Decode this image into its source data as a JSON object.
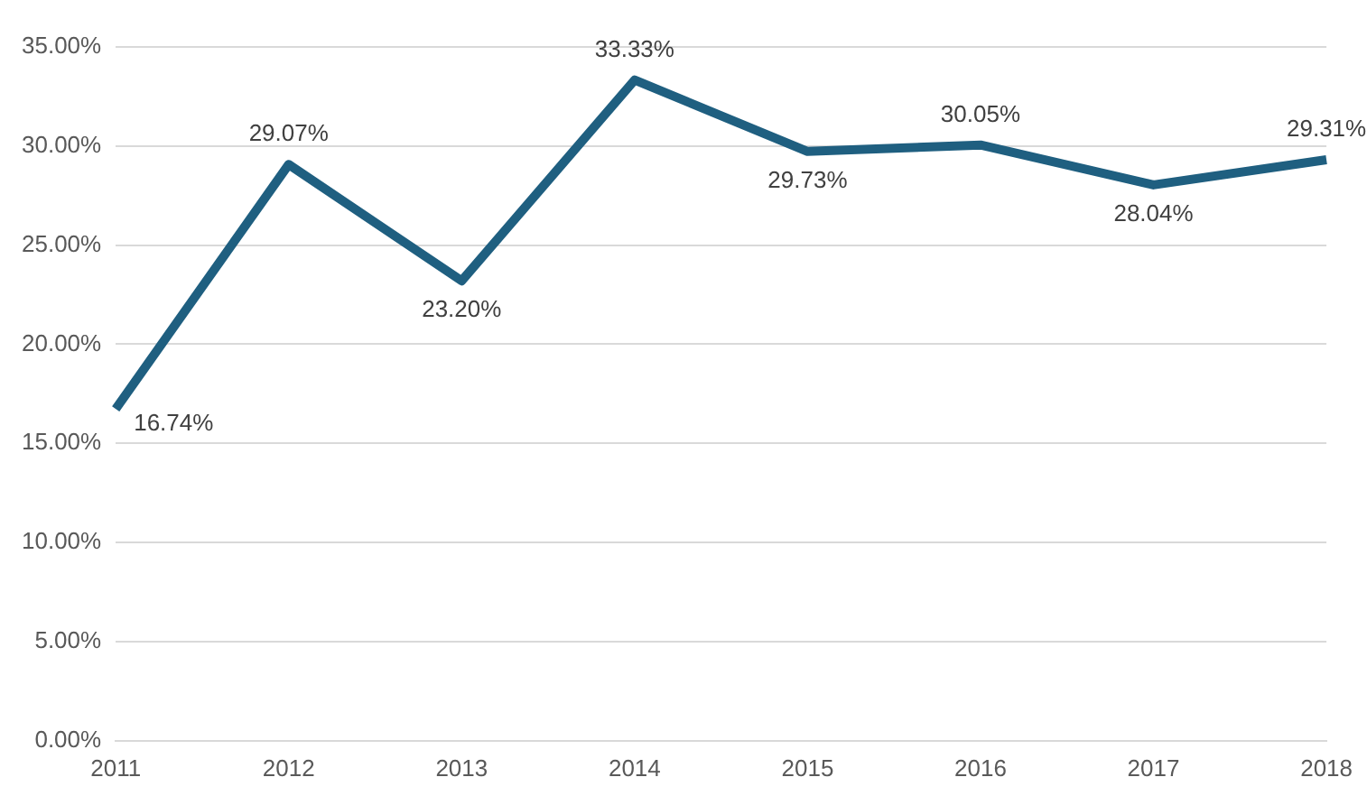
{
  "chart_data": {
    "type": "line",
    "categories": [
      "2011",
      "2012",
      "2013",
      "2014",
      "2015",
      "2016",
      "2017",
      "2018"
    ],
    "series": [
      {
        "color": "#1f5f80",
        "values": [
          16.74,
          29.07,
          23.2,
          33.33,
          29.73,
          30.05,
          28.04,
          29.31
        ],
        "value_labels": [
          "16.74%",
          "29.07%",
          "23.20%",
          "33.33%",
          "29.73%",
          "30.05%",
          "28.04%",
          "29.31%"
        ]
      }
    ],
    "ylim": [
      0,
      35
    ],
    "yticks": [
      {
        "value": 0,
        "label": "0.00%"
      },
      {
        "value": 5,
        "label": "5.00%"
      },
      {
        "value": 10,
        "label": "10.00%"
      },
      {
        "value": 15,
        "label": "15.00%"
      },
      {
        "value": 20,
        "label": "20.00%"
      },
      {
        "value": 25,
        "label": "25.00%"
      },
      {
        "value": 30,
        "label": "30.00%"
      },
      {
        "value": 35,
        "label": "35.00%"
      }
    ],
    "grid": "y",
    "legend": false,
    "marker": "none",
    "line_style": "solid"
  }
}
